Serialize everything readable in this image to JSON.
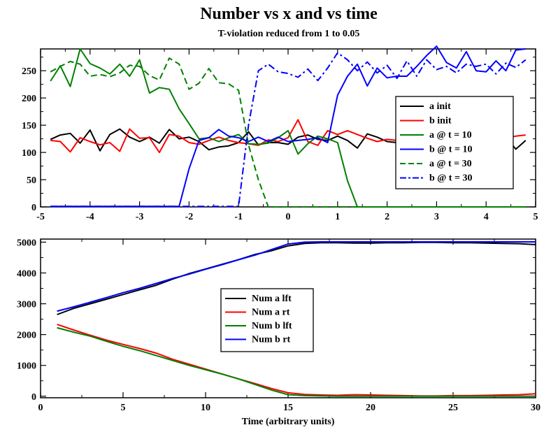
{
  "title": "Number vs x and vs time",
  "subtitle": "T-violation reduced from 1 to 0.05",
  "chart_data": [
    {
      "type": "line",
      "title": "Number vs x and vs time",
      "subtitle": "T-violation reduced from 1 to 0.05",
      "xlabel": "",
      "ylabel": "",
      "xlim": [
        -5,
        5
      ],
      "ylim": [
        0,
        290
      ],
      "xticks": [
        -5,
        -4,
        -3,
        -2,
        -1,
        0,
        1,
        2,
        3,
        4,
        5
      ],
      "yticks": [
        0,
        50,
        100,
        150,
        200,
        250
      ],
      "legend": "center-right",
      "grid": false,
      "x": [
        -4.8,
        -4.6,
        -4.4,
        -4.2,
        -4.0,
        -3.8,
        -3.6,
        -3.4,
        -3.2,
        -3.0,
        -2.8,
        -2.6,
        -2.4,
        -2.2,
        -2.0,
        -1.8,
        -1.6,
        -1.4,
        -1.2,
        -1.0,
        -0.8,
        -0.6,
        -0.4,
        -0.2,
        0.0,
        0.2,
        0.4,
        0.6,
        0.8,
        1.0,
        1.2,
        1.4,
        1.6,
        1.8,
        2.0,
        2.2,
        2.4,
        2.6,
        2.8,
        3.0,
        3.2,
        3.4,
        3.6,
        3.8,
        4.0,
        4.2,
        4.4,
        4.6,
        4.8
      ],
      "series": [
        {
          "name": "a init",
          "color": "#000000",
          "dash": "solid",
          "values": [
            124,
            132,
            135,
            117,
            141,
            103,
            133,
            143,
            128,
            120,
            128,
            117,
            142,
            125,
            128,
            120,
            105,
            110,
            112,
            118,
            138,
            114,
            118,
            118,
            115,
            128,
            132,
            124,
            122,
            130,
            122,
            108,
            134,
            128,
            120,
            118,
            122,
            133,
            128,
            120,
            118,
            128,
            130,
            124,
            126,
            120,
            128,
            106,
            122
          ]
        },
        {
          "name": "b init",
          "color": "#ff0000",
          "dash": "solid",
          "values": [
            122,
            120,
            101,
            127,
            120,
            114,
            118,
            102,
            143,
            126,
            127,
            100,
            133,
            130,
            118,
            115,
            122,
            128,
            122,
            118,
            116,
            113,
            123,
            120,
            127,
            160,
            120,
            113,
            140,
            133,
            140,
            133,
            126,
            120,
            124,
            122,
            128,
            126,
            130,
            128,
            127,
            125,
            130,
            128,
            126,
            131,
            126,
            130,
            132
          ]
        },
        {
          "name": "a @ t = 10",
          "color": "#008000",
          "dash": "solid",
          "values": [
            231,
            259,
            221,
            290,
            263,
            255,
            244,
            262,
            240,
            270,
            209,
            219,
            216,
            180,
            153,
            125,
            127,
            120,
            127,
            133,
            116,
            115,
            117,
            127,
            140,
            97,
            116,
            130,
            125,
            118,
            48,
            0,
            0,
            0,
            0,
            0,
            0,
            0,
            0,
            0,
            0,
            0,
            0,
            0,
            0,
            0,
            0,
            0,
            0
          ]
        },
        {
          "name": "b @ t = 10",
          "color": "#0000ff",
          "dash": "solid",
          "values": [
            1,
            1,
            1,
            1,
            1,
            1,
            1,
            1,
            1,
            1,
            1,
            1,
            1,
            1,
            70,
            122,
            127,
            142,
            130,
            127,
            120,
            128,
            120,
            128,
            120,
            122,
            124,
            127,
            118,
            205,
            240,
            262,
            222,
            255,
            237,
            240,
            240,
            258,
            278,
            295,
            265,
            255,
            285,
            250,
            248,
            268,
            250,
            288,
            290
          ]
        },
        {
          "name": "a @ t = 30",
          "color": "#008000",
          "dash": "dashed",
          "values": [
            248,
            258,
            267,
            262,
            240,
            243,
            239,
            246,
            260,
            258,
            241,
            233,
            273,
            262,
            216,
            227,
            254,
            228,
            226,
            214,
            114,
            50,
            0,
            0,
            0,
            0,
            0,
            0,
            0,
            0,
            0,
            0,
            0,
            0,
            0,
            0,
            0,
            0,
            0,
            0,
            0,
            0,
            0,
            0,
            0,
            0,
            0,
            0,
            0
          ]
        },
        {
          "name": "b @ t = 30",
          "color": "#0000ff",
          "dash": "dashdot",
          "values": [
            1,
            1,
            1,
            1,
            1,
            1,
            1,
            1,
            1,
            1,
            1,
            1,
            1,
            1,
            1,
            1,
            1,
            1,
            1,
            1,
            150,
            250,
            262,
            248,
            245,
            238,
            253,
            232,
            255,
            283,
            270,
            250,
            266,
            246,
            260,
            236,
            268,
            240,
            270,
            252,
            258,
            246,
            262,
            258,
            262,
            244,
            264,
            256,
            270
          ]
        }
      ]
    },
    {
      "type": "line",
      "title": "",
      "xlabel": "Time (arbitrary units)",
      "ylabel": "",
      "xlim": [
        0,
        30
      ],
      "ylim": [
        -50,
        5100
      ],
      "xticks": [
        0,
        5,
        10,
        15,
        20,
        25,
        30
      ],
      "yticks": [
        0,
        1000,
        2000,
        3000,
        4000,
        5000
      ],
      "legend": "center",
      "grid": false,
      "x": [
        1,
        2,
        3,
        4,
        5,
        6,
        7,
        8,
        9,
        10,
        11,
        12,
        13,
        14,
        15,
        16,
        17,
        18,
        19,
        20,
        21,
        22,
        23,
        24,
        25,
        26,
        27,
        28,
        29,
        30
      ],
      "series": [
        {
          "name": "Num a lft",
          "color": "#000000",
          "dash": "solid",
          "values": [
            2650,
            2850,
            3000,
            3150,
            3300,
            3450,
            3600,
            3800,
            3980,
            4130,
            4280,
            4430,
            4600,
            4720,
            4880,
            4960,
            4980,
            4980,
            4970,
            4970,
            4980,
            4980,
            4990,
            4990,
            4980,
            4980,
            4970,
            4960,
            4950,
            4920
          ]
        },
        {
          "name": "Num a rt",
          "color": "#ff0000",
          "dash": "solid",
          "values": [
            2330,
            2150,
            1980,
            1820,
            1680,
            1550,
            1400,
            1200,
            1040,
            880,
            720,
            560,
            410,
            250,
            110,
            60,
            40,
            30,
            50,
            40,
            30,
            20,
            10,
            10,
            20,
            20,
            30,
            40,
            50,
            80
          ]
        },
        {
          "name": "Num b lft",
          "color": "#008000",
          "dash": "solid",
          "values": [
            2220,
            2080,
            1950,
            1780,
            1620,
            1480,
            1320,
            1160,
            1000,
            860,
            720,
            560,
            380,
            200,
            50,
            20,
            10,
            0,
            0,
            0,
            0,
            0,
            0,
            0,
            0,
            0,
            0,
            0,
            0,
            0
          ]
        },
        {
          "name": "Num b rt",
          "color": "#0000ff",
          "dash": "solid",
          "values": [
            2760,
            2900,
            3050,
            3200,
            3360,
            3500,
            3660,
            3820,
            3960,
            4120,
            4270,
            4430,
            4580,
            4760,
            4940,
            5000,
            5010,
            5010,
            5010,
            5010,
            5010,
            5010,
            5010,
            5010,
            5010,
            5010,
            5010,
            5010,
            5010,
            5010
          ]
        }
      ]
    }
  ]
}
